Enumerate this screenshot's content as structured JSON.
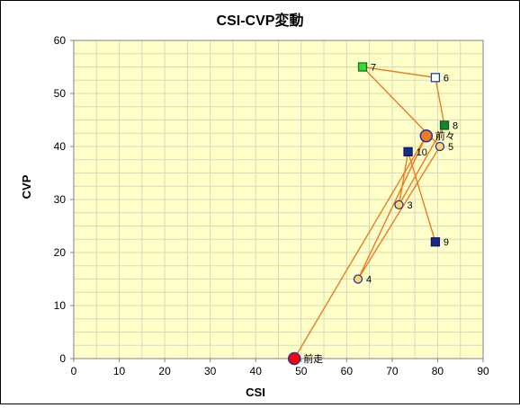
{
  "chart_data": {
    "type": "scatter",
    "title": "CSI-CVP変動",
    "xlabel": "CSI",
    "ylabel": "CVP",
    "xlim": [
      0,
      90
    ],
    "ylim": [
      0,
      60
    ],
    "xticks": [
      "0",
      "10",
      "20",
      "30",
      "40",
      "50",
      "60",
      "70",
      "80",
      "90"
    ],
    "yticks": [
      "0",
      "10",
      "20",
      "30",
      "40",
      "50",
      "60"
    ],
    "grid": true,
    "line_color": "#f07a1f",
    "plot_background": "#ffffc8",
    "grid_color": "#d8d8c0",
    "path_order": [
      "前走",
      "前々",
      "4",
      "5",
      "7",
      "6",
      "8",
      "3",
      "10",
      "9"
    ],
    "points": [
      {
        "label": "前走",
        "x": 48.5,
        "y": 0,
        "marker": "circle-large",
        "fill": "#ff0000",
        "stroke": "#2233aa"
      },
      {
        "label": "前々",
        "x": 77.5,
        "y": 42,
        "marker": "circle-large",
        "fill": "#f07a1f",
        "stroke": "#2233aa"
      },
      {
        "label": "3",
        "x": 71.5,
        "y": 29,
        "marker": "circle",
        "fill": "#ffd86a",
        "stroke": "#2233aa"
      },
      {
        "label": "4",
        "x": 62.5,
        "y": 15,
        "marker": "circle",
        "fill": "#ffd86a",
        "stroke": "#2233aa"
      },
      {
        "label": "5",
        "x": 80.5,
        "y": 40,
        "marker": "circle",
        "fill": "#ffd86a",
        "stroke": "#2233aa"
      },
      {
        "label": "6",
        "x": 79.5,
        "y": 53,
        "marker": "square",
        "fill": "#ffffff",
        "stroke": "#1f3caa"
      },
      {
        "label": "7",
        "x": 63.5,
        "y": 55,
        "marker": "square",
        "fill": "#33dd33",
        "stroke": "#117711"
      },
      {
        "label": "8",
        "x": 81.5,
        "y": 44,
        "marker": "square",
        "fill": "#118833",
        "stroke": "#115522"
      },
      {
        "label": "9",
        "x": 79.5,
        "y": 22,
        "marker": "square",
        "fill": "#1a2a88",
        "stroke": "#0f1a66"
      },
      {
        "label": "10",
        "x": 73.5,
        "y": 39,
        "marker": "square",
        "fill": "#1a2a88",
        "stroke": "#0f1a66"
      }
    ]
  }
}
